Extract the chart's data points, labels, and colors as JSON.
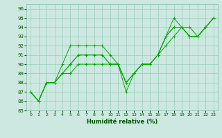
{
  "xlabel": "Humidité relative (%)",
  "xlim": [
    -0.5,
    23.5
  ],
  "ylim": [
    85,
    96.5
  ],
  "yticks": [
    85,
    86,
    87,
    88,
    89,
    90,
    91,
    92,
    93,
    94,
    95,
    96
  ],
  "xticks": [
    0,
    1,
    2,
    3,
    4,
    5,
    6,
    7,
    8,
    9,
    10,
    11,
    12,
    13,
    14,
    15,
    16,
    17,
    18,
    19,
    20,
    21,
    22,
    23
  ],
  "bg_color": "#cce8e0",
  "grid_color": "#99ccbb",
  "line_color": "#00aa00",
  "lines": [
    [
      87,
      86,
      88,
      88,
      90,
      92,
      92,
      92,
      92,
      92,
      91,
      90,
      87,
      89,
      90,
      90,
      91,
      93,
      95,
      94,
      94,
      93,
      94,
      95
    ],
    [
      87,
      86,
      88,
      88,
      89,
      90,
      91,
      91,
      91,
      91,
      90,
      90,
      88,
      89,
      90,
      90,
      91,
      93,
      94,
      94,
      93,
      93,
      94,
      95
    ],
    [
      87,
      86,
      88,
      88,
      89,
      90,
      91,
      91,
      91,
      91,
      90,
      90,
      88,
      89,
      90,
      90,
      91,
      93,
      94,
      94,
      93,
      93,
      94,
      95
    ],
    [
      87,
      86,
      88,
      88,
      89,
      89,
      90,
      90,
      90,
      90,
      90,
      90,
      88,
      89,
      90,
      90,
      91,
      92,
      93,
      94,
      93,
      93,
      94,
      95
    ]
  ]
}
